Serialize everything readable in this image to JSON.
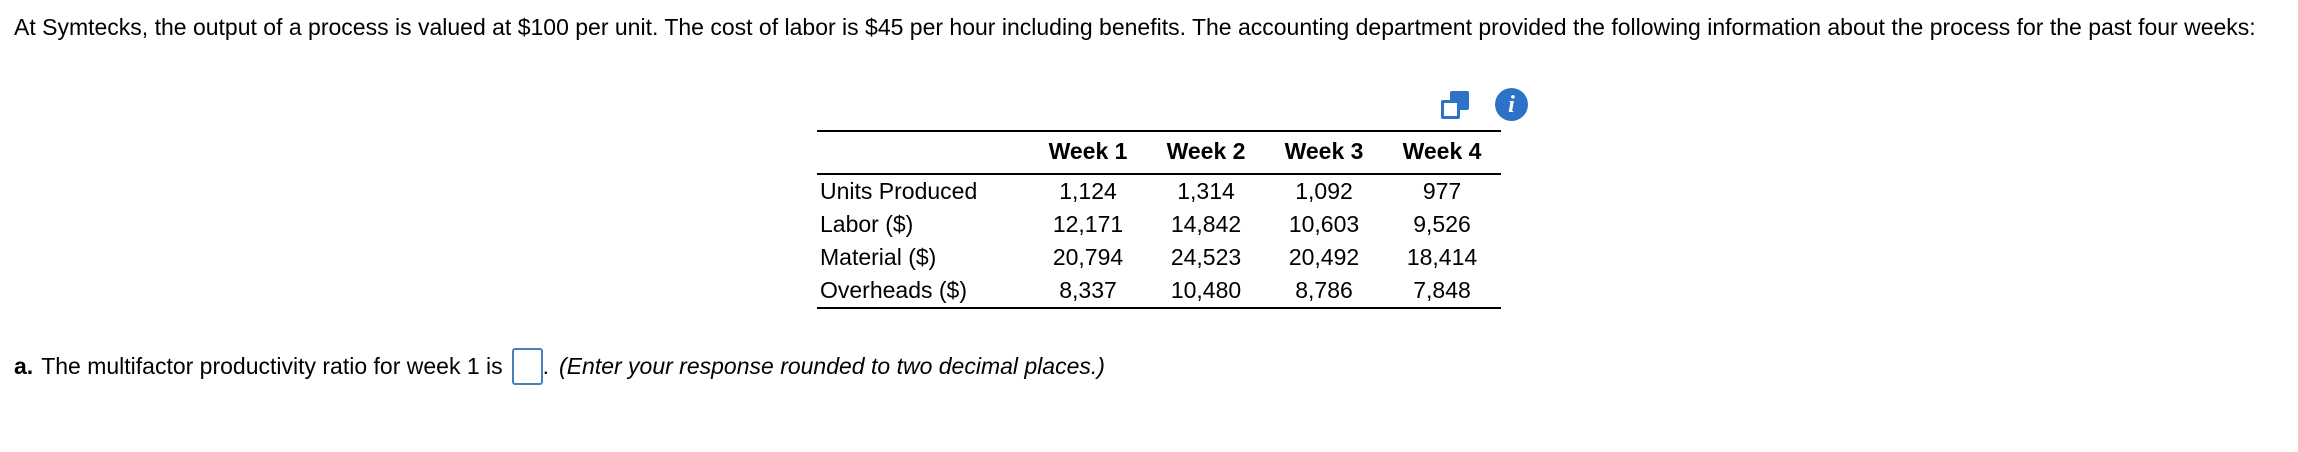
{
  "colors": {
    "accent_blue": "#2e72c8",
    "input_border": "#4a7ebf",
    "rule_black": "#000000"
  },
  "intro": {
    "text": "At Symtecks, the output of a process is valued at $100 per unit. The cost of labor is $45 per hour including benefits. The accounting department provided the following information about the process for the past four weeks:"
  },
  "icons": {
    "copy": "copy-icon",
    "info": "info-icon",
    "info_glyph": "i"
  },
  "chart_data": {
    "type": "table",
    "columns": [
      "Week 1",
      "Week 2",
      "Week 3",
      "Week 4"
    ],
    "rows": [
      {
        "label": "Units Produced",
        "values": [
          "1,124",
          "1,314",
          "1,092",
          "977"
        ]
      },
      {
        "label": "Labor ($)",
        "values": [
          "12,171",
          "14,842",
          "10,603",
          "9,526"
        ]
      },
      {
        "label": "Material ($)",
        "values": [
          "20,794",
          "24,523",
          "20,492",
          "18,414"
        ]
      },
      {
        "label": "Overheads ($)",
        "values": [
          "8,337",
          "10,480",
          "8,786",
          "7,848"
        ]
      }
    ]
  },
  "question": {
    "part_label": "a.",
    "prompt": "The multifactor productivity ratio for week 1 is",
    "input_value": "",
    "period": ".",
    "note": "(Enter your response rounded to two decimal places.)"
  }
}
